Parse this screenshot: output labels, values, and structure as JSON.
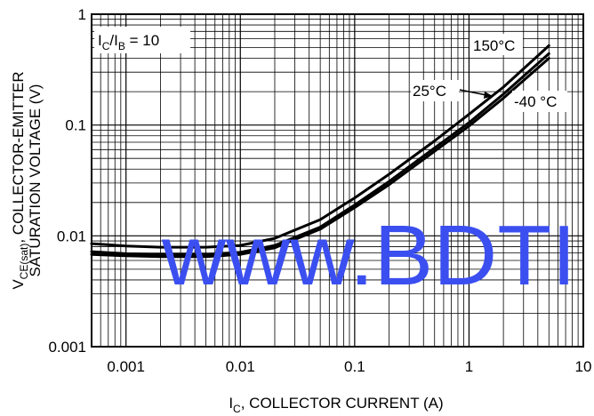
{
  "chart_data": {
    "type": "line",
    "xscale": "log",
    "yscale": "log",
    "xlim": [
      0.0005,
      10
    ],
    "ylim": [
      0.001,
      1
    ],
    "grid": true,
    "xlabel": "I",
    "xlabel_sub": "C",
    "xlabel_rest": ", COLLECTOR CURRENT (A)",
    "ylabel_line1_main": "V",
    "ylabel_line1_sub": "CE(sat)",
    "ylabel_line1_rest": ", COLLECTOR-EMITTER",
    "ylabel_line2": "SATURATION VOLTAGE (V)",
    "x_ticks": [
      {
        "value": 0.001,
        "label": "0.001"
      },
      {
        "value": 0.01,
        "label": "0.01"
      },
      {
        "value": 0.1,
        "label": "0.1"
      },
      {
        "value": 1,
        "label": "1"
      },
      {
        "value": 10,
        "label": "10"
      }
    ],
    "y_ticks": [
      {
        "value": 0.001,
        "label": "0.001"
      },
      {
        "value": 0.01,
        "label": "0.01"
      },
      {
        "value": 0.1,
        "label": "0.1"
      },
      {
        "value": 1,
        "label": "1"
      }
    ],
    "condition": {
      "main1": "I",
      "sub1": "C",
      "slash": "/I",
      "sub2": "B",
      "rest": " = 10"
    },
    "series": [
      {
        "name": "150°C",
        "x": [
          0.0005,
          0.001,
          0.002,
          0.005,
          0.01,
          0.02,
          0.05,
          0.1,
          0.2,
          0.5,
          1,
          2,
          5
        ],
        "y": [
          0.0085,
          0.0081,
          0.0079,
          0.0079,
          0.0082,
          0.0095,
          0.014,
          0.022,
          0.036,
          0.072,
          0.125,
          0.22,
          0.52
        ]
      },
      {
        "name": "25°C",
        "x": [
          0.0005,
          0.001,
          0.002,
          0.005,
          0.01,
          0.02,
          0.05,
          0.1,
          0.2,
          0.5,
          1,
          2,
          5
        ],
        "y": [
          0.0072,
          0.0069,
          0.0068,
          0.0068,
          0.0071,
          0.0082,
          0.012,
          0.019,
          0.031,
          0.062,
          0.105,
          0.19,
          0.44
        ]
      },
      {
        "name": "-40 °C",
        "x": [
          0.0005,
          0.001,
          0.002,
          0.005,
          0.01,
          0.02,
          0.05,
          0.1,
          0.2,
          0.5,
          1,
          2,
          5
        ],
        "y": [
          0.0068,
          0.0066,
          0.0065,
          0.0065,
          0.0068,
          0.0078,
          0.0115,
          0.018,
          0.029,
          0.058,
          0.098,
          0.175,
          0.4
        ]
      }
    ],
    "watermark": "www.BDTI"
  }
}
